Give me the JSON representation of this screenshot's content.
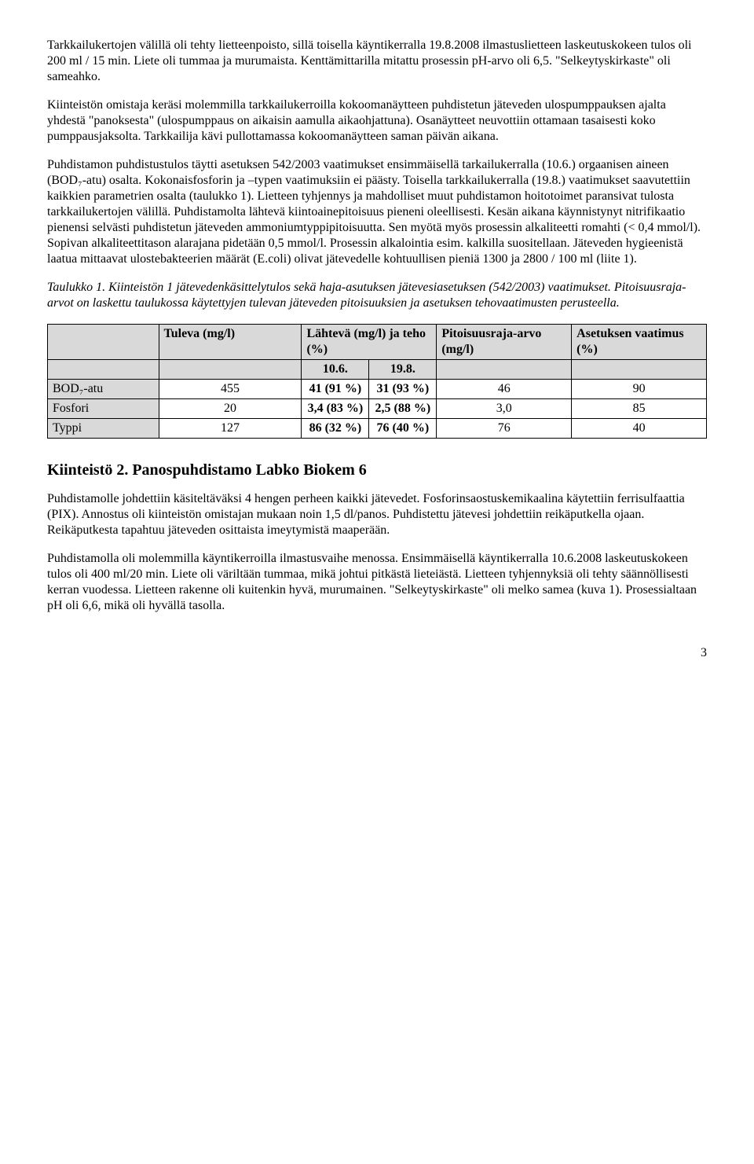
{
  "p1": "Tarkkailukertojen välillä oli tehty lietteenpoisto, sillä toisella käyntikerralla 19.8.2008 ilmastuslietteen laskeutuskokeen tulos oli 200 ml / 15 min. Liete oli tummaa ja murumaista. Kenttämittarilla mitattu prosessin pH-arvo oli 6,5. \"Selkeytyskirkaste\" oli sameahko.",
  "p2": "Kiinteistön omistaja keräsi molemmilla tarkkailukerroilla kokoomanäytteen puhdistetun jäteveden ulospumppauksen ajalta yhdestä \"panoksesta\" (ulospumppaus on aikaisin aamulla aikaohjattuna). Osanäytteet neuvottiin ottamaan tasaisesti koko pumppausjaksolta. Tarkkailija kävi pullottamassa kokoomanäytteen saman päivän aikana.",
  "p3": "Puhdistamon puhdistustulos täytti asetuksen 542/2003 vaatimukset ensimmäisellä tarkailukerralla (10.6.) orgaanisen aineen (BOD₇-atu) osalta. Kokonaisfosforin ja –typen vaatimuksiin ei päästy. Toisella tarkkailukerralla (19.8.) vaatimukset saavutettiin kaikkien parametrien osalta (taulukko 1). Lietteen tyhjennys ja mahdolliset muut puhdistamon hoitotoimet paransivat tulosta tarkkailukertojen välillä. Puhdistamolta lähtevä kiintoainepitoisuus pieneni oleellisesti. Kesän aikana käynnistynyt nitrifikaatio pienensi selvästi puhdistetun jäteveden ammoniumtyppipitoisuutta. Sen myötä myös prosessin alkaliteetti romahti (< 0,4 mmol/l). Sopivan alkaliteettitason alarajana pidetään 0,5 mmol/l. Prosessin alkalointia esim. kalkilla suositellaan. Jäteveden hygieenistä laatua mittaavat ulostebakteerien määrät (E.coli) olivat jätevedelle kohtuullisen pieniä 1300 ja 2800 / 100 ml (liite 1).",
  "caption": "Taulukko 1. Kiinteistön 1 jätevedenkäsittelytulos sekä haja-asutuksen jätevesiasetuksen (542/2003) vaatimukset. Pitoisuusraja-arvot on laskettu taulukossa käytettyjen tulevan jäteveden pitoisuuksien ja asetuksen tehovaatimusten perusteella.",
  "table": {
    "head": {
      "tuleva": "Tuleva (mg/l)",
      "lahteva": "Lähtevä (mg/l) ja teho (%)",
      "pitoisuus": "Pitoisuusraja-arvo (mg/l)",
      "asetuksen": "Asetuksen vaatimus (%)",
      "d1": "10.6.",
      "d2": "19.8."
    },
    "rows": {
      "r0": {
        "label": "BOD₇-atu",
        "tuleva": "455",
        "v1": "41 (91 %)",
        "v2": "31 (93 %)",
        "pit": "46",
        "aset": "90"
      },
      "r1": {
        "label": "Fosfori",
        "tuleva": "20",
        "v1": "3,4 (83 %)",
        "v2": "2,5 (88 %)",
        "pit": "3,0",
        "aset": "85"
      },
      "r2": {
        "label": "Typpi",
        "tuleva": "127",
        "v1": "86 (32 %)",
        "v2": "76 (40 %)",
        "pit": "76",
        "aset": "40"
      }
    }
  },
  "h2": "Kiinteistö 2.  Panospuhdistamo Labko Biokem 6",
  "p4": "Puhdistamolle johdettiin käsiteltäväksi 4 hengen perheen kaikki jätevedet. Fosforinsaostuskemikaalina käytettiin ferrisulfaattia (PIX). Annostus oli kiinteistön omistajan mukaan noin 1,5 dl/panos. Puhdistettu jätevesi johdettiin reikäputkella ojaan. Reikäputkesta tapahtuu jäteveden osittaista imeytymistä maaperään.",
  "p5": "Puhdistamolla oli molemmilla käyntikerroilla ilmastusvaihe menossa. Ensimmäisellä käyntikerralla 10.6.2008 laskeutuskokeen tulos oli 400 ml/20 min. Liete oli väriltään tummaa, mikä johtui pitkästä lieteiästä. Lietteen tyhjennyksiä oli tehty säännöllisesti kerran vuodessa. Lietteen rakenne oli kuitenkin hyvä, murumainen. \"Selkeytyskirkaste\" oli melko samea (kuva 1). Prosessialtaan pH oli 6,6, mikä oli hyvällä tasolla.",
  "pagenum": "3"
}
